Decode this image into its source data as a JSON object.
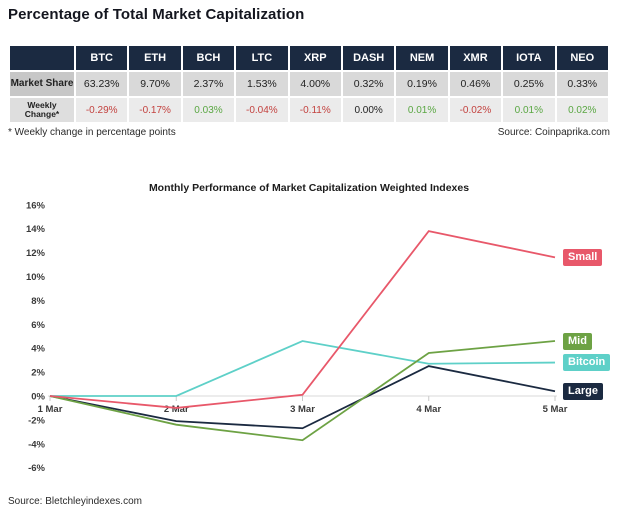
{
  "page_title": "Percentage of Total Market Capitalization",
  "table": {
    "columns": [
      "BTC",
      "ETH",
      "BCH",
      "LTC",
      "XRP",
      "DASH",
      "NEM",
      "XMR",
      "IOTA",
      "NEO"
    ],
    "rows": [
      {
        "label": "Market Share",
        "values": [
          "63.23%",
          "9.70%",
          "2.37%",
          "1.53%",
          "4.00%",
          "0.32%",
          "0.19%",
          "0.46%",
          "0.25%",
          "0.33%"
        ],
        "colored_by_sign": false
      },
      {
        "label": "Weekly Change*",
        "values": [
          "-0.29%",
          "-0.17%",
          "0.03%",
          "-0.04%",
          "-0.11%",
          "0.00%",
          "0.01%",
          "-0.02%",
          "0.01%",
          "0.02%"
        ],
        "colored_by_sign": true
      }
    ]
  },
  "footnote": "* Weekly change in percentage points",
  "table_source": "Source: Coinpaprika.com",
  "chart_source": "Source: Bletchleyindexes.com",
  "chart_data": {
    "type": "line",
    "title": "Monthly Performance of Market Capitalization Weighted Indexes",
    "categories": [
      "1 Mar",
      "2 Mar",
      "3 Mar",
      "4 Mar",
      "5 Mar"
    ],
    "series": [
      {
        "name": "Large",
        "color": "#1b2a41",
        "values": [
          0,
          -2.1,
          -2.7,
          2.5,
          0.4
        ]
      },
      {
        "name": "Bitcoin",
        "color": "#5ed0c8",
        "values": [
          0,
          0.0,
          4.6,
          2.7,
          2.8
        ]
      },
      {
        "name": "Mid",
        "color": "#6da244",
        "values": [
          0,
          -2.4,
          -3.7,
          3.6,
          4.6
        ]
      },
      {
        "name": "Small",
        "color": "#e8586a",
        "values": [
          0,
          -1.0,
          0.1,
          13.8,
          11.6
        ]
      }
    ],
    "ylim": [
      -6,
      16
    ],
    "ytick_step": 2,
    "ytick_suffix": "%",
    "grid": "zero-line-only",
    "legend_position": "right-end-labels"
  },
  "colors": {
    "header_bg": "#1b2a41",
    "row1_label_bg": "#c7c7c7",
    "row1_value_bg": "#d9d9d9",
    "row2_label_bg": "#dedede",
    "row2_value_bg": "#ebebeb",
    "negative_text": "#c3423f",
    "positive_text": "#5aa743",
    "neutral_text": "#222222",
    "axis_line": "#d8d8d8",
    "axis_tick": "#c9c9c9"
  }
}
